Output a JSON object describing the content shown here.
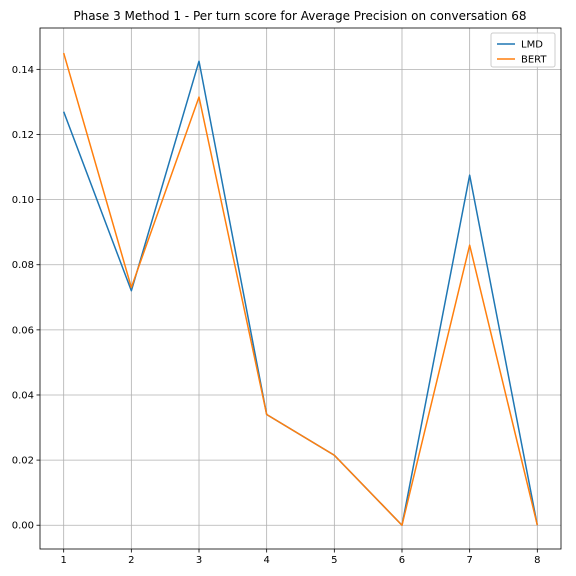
{
  "chart_data": {
    "type": "line",
    "title": "Phase 3 Method 1 - Per turn score for Average Precision on conversation 68",
    "xlabel": "",
    "ylabel": "",
    "x": [
      1,
      2,
      3,
      4,
      5,
      6,
      7,
      8
    ],
    "xlim": [
      0.65,
      8.35
    ],
    "ylim": [
      -0.0073,
      0.1527
    ],
    "x_ticks": [
      1,
      2,
      3,
      4,
      5,
      6,
      7,
      8
    ],
    "y_ticks": [
      0.0,
      0.02,
      0.04,
      0.06,
      0.08,
      0.1,
      0.12,
      0.14
    ],
    "y_tick_labels": [
      "0.00",
      "0.02",
      "0.04",
      "0.06",
      "0.08",
      "0.10",
      "0.12",
      "0.14"
    ],
    "grid": true,
    "legend_position": "top-right",
    "series": [
      {
        "name": "LMD",
        "color": "#1f77b4",
        "values": [
          0.127,
          0.072,
          0.1425,
          0.034,
          0.0215,
          0.0,
          0.1075,
          0.0
        ]
      },
      {
        "name": "BERT",
        "color": "#ff7f0e",
        "values": [
          0.145,
          0.073,
          0.1315,
          0.034,
          0.0215,
          0.0,
          0.086,
          0.0
        ]
      }
    ]
  }
}
